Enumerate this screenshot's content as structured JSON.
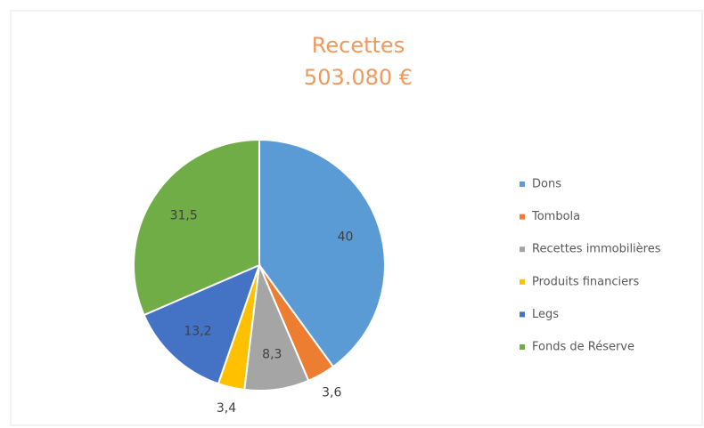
{
  "chart_data": {
    "type": "pie",
    "title": "Recettes",
    "subtitle": "503.080 €",
    "categories": [
      "Dons",
      "Tombola",
      "Recettes immobilières",
      "Produits financiers",
      "Legs",
      "Fonds de Réserve"
    ],
    "values": [
      40,
      3.6,
      8.3,
      3.4,
      13.2,
      31.5
    ],
    "value_labels": [
      "40",
      "3,6",
      "8,3",
      "3,4",
      "13,2",
      "31,5"
    ],
    "colors": [
      "#5b9bd5",
      "#ed7d31",
      "#a5a5a5",
      "#ffc000",
      "#4472c4",
      "#70ad47"
    ],
    "legend": "right"
  }
}
